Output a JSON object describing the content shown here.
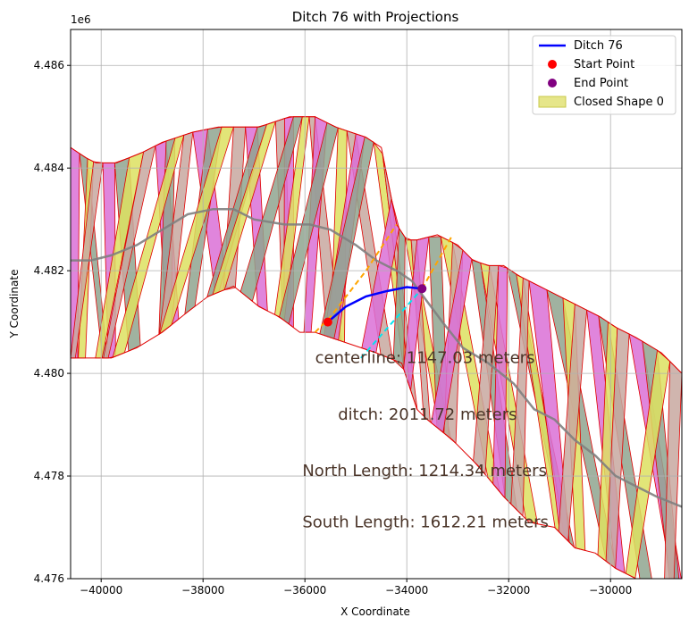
{
  "chart_data": {
    "type": "line",
    "title": "Ditch 76 with Projections",
    "xlabel": "X Coordinate",
    "ylabel": "Y Coordinate",
    "y_offset_label": "1e6",
    "xlim": [
      -40600,
      -28600
    ],
    "ylim": [
      4.476,
      4.4867
    ],
    "x_ticks": [
      -40000,
      -38000,
      -36000,
      -34000,
      -32000,
      -30000
    ],
    "x_tick_labels": [
      "−40000",
      "−38000",
      "−36000",
      "−34000",
      "−32000",
      "−30000"
    ],
    "y_ticks": [
      4.476,
      4.478,
      4.48,
      4.482,
      4.484,
      4.486
    ],
    "y_tick_labels": [
      "4.476",
      "4.478",
      "4.480",
      "4.482",
      "4.484",
      "4.486"
    ],
    "grid": true,
    "legend_position": "upper right",
    "legend": [
      {
        "label": "Ditch 76",
        "kind": "line",
        "color": "#0000ff"
      },
      {
        "label": "Start Point",
        "kind": "marker",
        "color": "#ff0000"
      },
      {
        "label": "End Point",
        "kind": "marker",
        "color": "#800080"
      },
      {
        "label": "Closed Shape 0",
        "kind": "patch",
        "color": "#e6e68a",
        "edge": "#c8c84a"
      }
    ],
    "ditch": {
      "name": "Ditch 76",
      "color": "#0000ff",
      "x": [
        -35550,
        -35200,
        -34800,
        -34400,
        -34000,
        -33700
      ],
      "y": [
        4.481,
        4.4813,
        4.4815,
        4.4816,
        4.48168,
        4.48165
      ]
    },
    "start_point": {
      "x": -35550,
      "y": 4.481,
      "color": "#ff0000"
    },
    "end_point": {
      "x": -33700,
      "y": 4.48165,
      "color": "#800080"
    },
    "projection_north": {
      "color": "#ffa500",
      "x": [
        -35800,
        -35500,
        -34800,
        -34200
      ],
      "y": [
        4.4808,
        4.4811,
        4.482,
        4.4829
      ]
    },
    "projection_north_end": {
      "color": "#ffa500",
      "x": [
        -33700,
        -33100
      ],
      "y": [
        4.48165,
        4.4827
      ]
    },
    "projection_south": {
      "color": "#00e5ee",
      "x": [
        -34900,
        -33700
      ],
      "y": [
        4.4803,
        4.48165
      ]
    },
    "centerline": {
      "color": "#808080",
      "x": [
        -40600,
        -40200,
        -39800,
        -39300,
        -38800,
        -38300,
        -37800,
        -37400,
        -37000,
        -36400,
        -35900,
        -35500,
        -35000,
        -34600,
        -34200,
        -33900,
        -33600,
        -33300,
        -32900,
        -32400,
        -31900,
        -31500,
        -31100,
        -30700,
        -30300,
        -29900,
        -29500,
        -29100,
        -28600
      ],
      "y": [
        4.4822,
        4.4822,
        4.4823,
        4.4825,
        4.4828,
        4.4831,
        4.4832,
        4.4832,
        4.483,
        4.4829,
        4.4829,
        4.4828,
        4.4825,
        4.4822,
        4.482,
        4.4818,
        4.4814,
        4.481,
        4.4805,
        4.4802,
        4.4798,
        4.4793,
        4.4791,
        4.4787,
        4.4784,
        4.478,
        4.4778,
        4.4776,
        4.4774
      ]
    },
    "polygon_outline": {
      "x": [
        -40600,
        -40300,
        -40100,
        -39700,
        -39200,
        -38800,
        -38500,
        -38200,
        -37700,
        -37300,
        -36900,
        -36600,
        -36300,
        -36000,
        -35800,
        -35400,
        -35100,
        -34800,
        -34500,
        -34200,
        -34000,
        -33800,
        -33400,
        -33000,
        -32700,
        -32400,
        -32100,
        -31800,
        -31600,
        -31000,
        -30600,
        -30200,
        -29900,
        -29500,
        -29000,
        -28600,
        -28600,
        -29000,
        -29500,
        -29900,
        -30300,
        -30700,
        -31100,
        -31600,
        -32100,
        -32600,
        -33100,
        -33600,
        -33800,
        -34100,
        -34600,
        -35200,
        -35800,
        -36100,
        -36500,
        -36900,
        -37400,
        -37900,
        -38300,
        -38800,
        -39300,
        -39800,
        -40000,
        -40300,
        -40600
      ],
      "y": [
        4.4844,
        4.4842,
        4.4841,
        4.4841,
        4.4843,
        4.4845,
        4.4846,
        4.4847,
        4.4848,
        4.4848,
        4.4848,
        4.4849,
        4.485,
        4.485,
        4.485,
        4.4848,
        4.4847,
        4.4846,
        4.4844,
        4.4829,
        4.4826,
        4.4826,
        4.4827,
        4.4825,
        4.4822,
        4.4821,
        4.4821,
        4.4819,
        4.4818,
        4.4815,
        4.4813,
        4.4811,
        4.4809,
        4.4807,
        4.4804,
        4.48,
        4.476,
        4.476,
        4.476,
        4.4762,
        4.4765,
        4.4766,
        4.477,
        4.4771,
        4.4776,
        4.4782,
        4.4787,
        4.4791,
        4.4793,
        4.4802,
        4.4804,
        4.4806,
        4.4808,
        4.4808,
        4.4811,
        4.4813,
        4.4817,
        4.4815,
        4.4812,
        4.4808,
        4.4805,
        4.4803,
        4.4803,
        4.4803,
        4.4803
      ]
    },
    "strip_colors": [
      "#da70d6",
      "#ff6347",
      "#87ceeb",
      "#708060",
      "#bcd860",
      "#bbbbd8",
      "#ff69b4",
      "#8fa58f",
      "#b0a0d8",
      "#ff8c69",
      "#ffb6c1",
      "#98e8a8",
      "#ff75b0",
      "#a0d0f0",
      "#dde060",
      "#9ad8c8",
      "#88d8b0",
      "#6a5acd",
      "#8fb07a",
      "#ffa07a",
      "#d0c080",
      "#c8a8a0",
      "#f0a8a8",
      "#80e0e8",
      "#ffb0b0",
      "#fa8072",
      "#d8f0c0",
      "#d8d8a0"
    ],
    "annotations": [
      {
        "text": "centerline: 1147.03 meters",
        "x": -35800,
        "y": 4.4802
      },
      {
        "text": "ditch: 2011.72 meters",
        "x": -35350,
        "y": 4.4791
      },
      {
        "text": "North Length: 1214.34 meters",
        "x": -36050,
        "y": 4.478
      },
      {
        "text": "South Length: 1612.21 meters",
        "x": -36050,
        "y": 4.477
      }
    ]
  }
}
